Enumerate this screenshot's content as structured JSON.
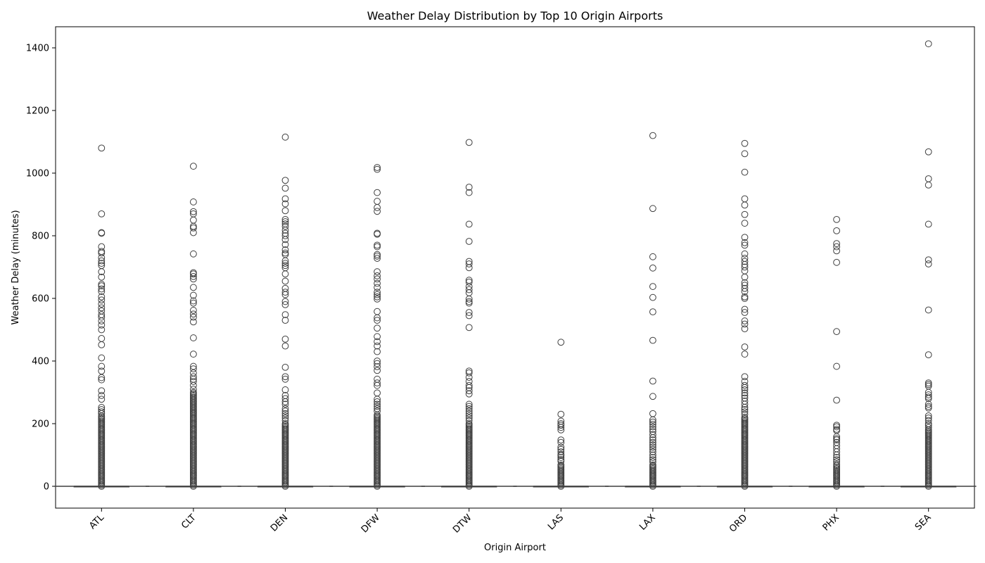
{
  "chart_data": {
    "type": "box",
    "title": "Weather Delay Distribution by Top 10 Origin Airports",
    "xlabel": "Origin Airport",
    "ylabel": "Weather Delay (minutes)",
    "ylim": [
      -70,
      1480
    ],
    "yticks": [
      0,
      200,
      400,
      600,
      800,
      1000,
      1200,
      1400
    ],
    "grid": false,
    "legend": "none",
    "colors": {
      "box_edge": "#3f3f3f",
      "flier_edge": "#3f3f3f",
      "axis": "#000000",
      "background": "#ffffff"
    },
    "categories": [
      "ATL",
      "CLT",
      "DEN",
      "DFW",
      "DTW",
      "LAS",
      "LAX",
      "ORD",
      "PHX",
      "SEA"
    ],
    "boxes": [
      {
        "name": "ATL",
        "q1": 0,
        "median": 0,
        "q3": 0,
        "whisker_low": 0,
        "whisker_high": 0,
        "dense_to": 225,
        "outliers": [
          1080,
          870,
          810,
          808,
          765,
          750,
          745,
          730,
          720,
          712,
          705,
          685,
          668,
          645,
          640,
          630,
          622,
          605,
          595,
          582,
          570,
          560,
          548,
          540,
          528,
          515,
          500,
          472,
          452,
          410,
          383,
          368,
          347,
          340,
          305,
          290,
          278,
          252,
          245,
          238,
          232
        ]
      },
      {
        "name": "CLT",
        "q1": 0,
        "median": 0,
        "q3": 0,
        "whisker_low": 0,
        "whisker_high": 0,
        "dense_to": 300,
        "outliers": [
          1022,
          908,
          877,
          870,
          850,
          830,
          825,
          810,
          742,
          682,
          678,
          670,
          662,
          635,
          610,
          592,
          585,
          562,
          550,
          540,
          525,
          474,
          422,
          383,
          375,
          362,
          350,
          342,
          335,
          322,
          310
        ]
      },
      {
        "name": "DEN",
        "q1": 0,
        "median": 0,
        "q3": 0,
        "whisker_low": 0,
        "whisker_high": 0,
        "dense_to": 200,
        "outliers": [
          1115,
          977,
          952,
          918,
          902,
          880,
          852,
          845,
          838,
          830,
          818,
          808,
          800,
          788,
          772,
          755,
          745,
          740,
          720,
          712,
          705,
          698,
          678,
          655,
          632,
          620,
          612,
          590,
          580,
          548,
          530,
          470,
          448,
          380,
          350,
          342,
          308,
          290,
          280,
          270,
          262,
          248,
          240,
          232,
          225,
          218,
          210
        ]
      },
      {
        "name": "DFW",
        "q1": 0,
        "median": 0,
        "q3": 0,
        "whisker_low": 0,
        "whisker_high": 0,
        "dense_to": 230,
        "outliers": [
          1018,
          1012,
          938,
          910,
          890,
          878,
          808,
          805,
          770,
          765,
          740,
          735,
          728,
          685,
          672,
          662,
          648,
          635,
          620,
          612,
          605,
          598,
          558,
          538,
          530,
          505,
          478,
          462,
          448,
          430,
          400,
          392,
          382,
          370,
          342,
          330,
          322,
          298,
          278,
          270,
          262,
          255,
          248,
          240
        ]
      },
      {
        "name": "DTW",
        "q1": 0,
        "median": 0,
        "q3": 0,
        "whisker_low": 0,
        "whisker_high": 0,
        "dense_to": 200,
        "outliers": [
          1098,
          955,
          938,
          837,
          782,
          718,
          710,
          698,
          658,
          652,
          638,
          628,
          618,
          598,
          590,
          585,
          555,
          545,
          507,
          368,
          362,
          348,
          335,
          322,
          315,
          305,
          295,
          262,
          255,
          248,
          240,
          232,
          225,
          218,
          210
        ]
      },
      {
        "name": "LAS",
        "q1": 0,
        "median": 0,
        "q3": 0,
        "whisker_low": 0,
        "whisker_high": 0,
        "dense_to": 70,
        "outliers": [
          460,
          230,
          208,
          200,
          195,
          188,
          180,
          148,
          140,
          125,
          118,
          110,
          102,
          98,
          92,
          85,
          80
        ]
      },
      {
        "name": "LAX",
        "q1": 0,
        "median": 0,
        "q3": 0,
        "whisker_low": 0,
        "whisker_high": 0,
        "dense_to": 70,
        "outliers": [
          1120,
          887,
          733,
          697,
          638,
          603,
          557,
          466,
          336,
          287,
          232,
          212,
          205,
          198,
          190,
          182,
          175,
          165,
          155,
          148,
          140,
          132,
          125,
          118,
          110,
          100,
          92,
          85,
          78
        ]
      },
      {
        "name": "ORD",
        "q1": 0,
        "median": 0,
        "q3": 0,
        "whisker_low": 0,
        "whisker_high": 0,
        "dense_to": 220,
        "outliers": [
          1095,
          1062,
          1003,
          918,
          898,
          868,
          840,
          795,
          778,
          770,
          742,
          728,
          718,
          708,
          700,
          688,
          668,
          650,
          642,
          632,
          622,
          605,
          600,
          565,
          555,
          528,
          518,
          503,
          445,
          422,
          350,
          335,
          322,
          315,
          308,
          298,
          290,
          282,
          272,
          262,
          252,
          245,
          238,
          230
        ]
      },
      {
        "name": "PHX",
        "q1": 0,
        "median": 0,
        "q3": 0,
        "whisker_low": 0,
        "whisker_high": 0,
        "dense_to": 60,
        "outliers": [
          852,
          816,
          775,
          765,
          752,
          715,
          494,
          383,
          275,
          195,
          190,
          182,
          178,
          158,
          152,
          148,
          140,
          130,
          120,
          110,
          100,
          92,
          85,
          78,
          70,
          65
        ]
      },
      {
        "name": "SEA",
        "q1": 0,
        "median": 0,
        "q3": 0,
        "whisker_low": 0,
        "whisker_high": 0,
        "dense_to": 180,
        "outliers": [
          1413,
          1068,
          982,
          962,
          837,
          723,
          710,
          563,
          420,
          330,
          325,
          320,
          300,
          292,
          285,
          280,
          262,
          255,
          250,
          225,
          218,
          210,
          200,
          195,
          188
        ]
      }
    ]
  }
}
